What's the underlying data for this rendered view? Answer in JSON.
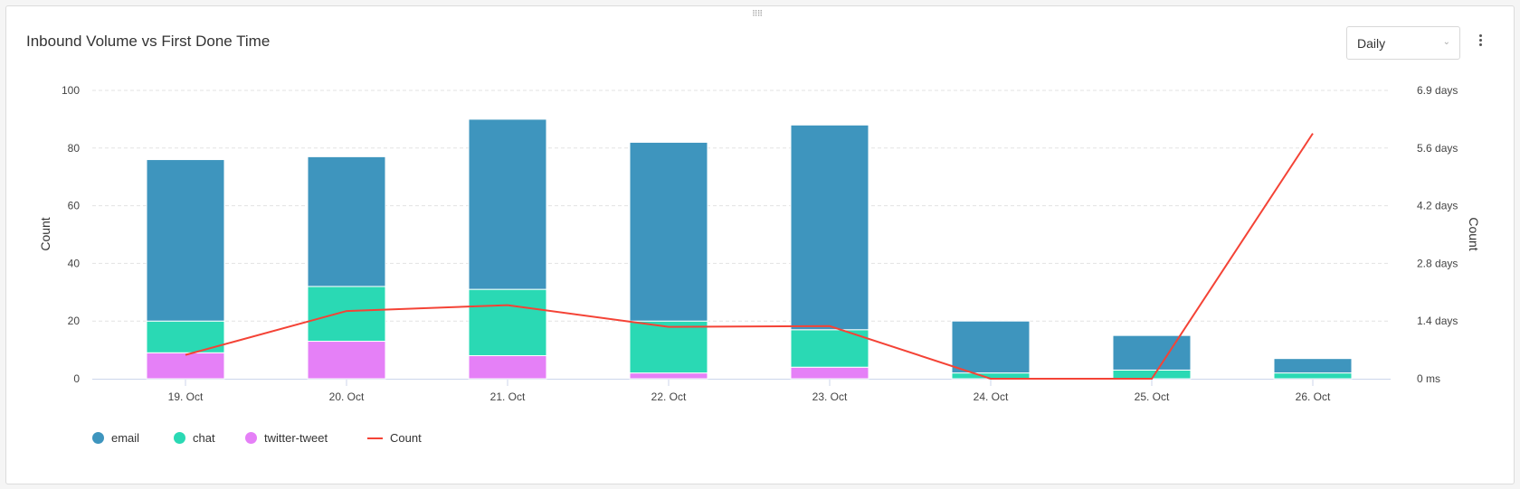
{
  "widget": {
    "title": "Inbound Volume vs First Done Time",
    "interval_select": "Daily",
    "menu_icon": "kebab-icon",
    "drag_icon": "drag-handle-icon"
  },
  "chart_data": {
    "type": "bar",
    "stacked": true,
    "title": "Inbound Volume vs First Done Time",
    "categories": [
      "19. Oct",
      "20. Oct",
      "21. Oct",
      "22. Oct",
      "23. Oct",
      "24. Oct",
      "25. Oct",
      "26. Oct"
    ],
    "ylabel": "Count",
    "ylim": [
      0,
      100
    ],
    "yticks": [
      "0",
      "20",
      "40",
      "60",
      "80",
      "100"
    ],
    "y2label": "Count",
    "y2lim_days": [
      0,
      6.9
    ],
    "y2ticks": [
      "0 ms",
      "1.4 days",
      "2.8 days",
      "4.2 days",
      "5.6 days",
      "6.9 days"
    ],
    "grid": true,
    "legend": "bottom-left",
    "series": [
      {
        "name": "twitter-tweet",
        "type": "bar",
        "color": "#e580f7",
        "values": [
          9,
          13,
          8,
          2,
          4,
          0,
          0,
          0
        ]
      },
      {
        "name": "chat",
        "type": "bar",
        "color": "#2ad9b4",
        "values": [
          11,
          19,
          23,
          18,
          13,
          2,
          3,
          2
        ]
      },
      {
        "name": "email",
        "type": "bar",
        "color": "#3e95be",
        "values": [
          56,
          45,
          59,
          62,
          71,
          18,
          12,
          5
        ]
      },
      {
        "name": "Count",
        "type": "line",
        "axis": "right",
        "unit": "days",
        "color": "#f44336",
        "values": [
          0.57,
          1.62,
          1.76,
          1.24,
          1.26,
          0,
          0,
          5.87
        ]
      }
    ],
    "legend_entries": [
      "email",
      "chat",
      "twitter-tweet",
      "Count"
    ]
  }
}
